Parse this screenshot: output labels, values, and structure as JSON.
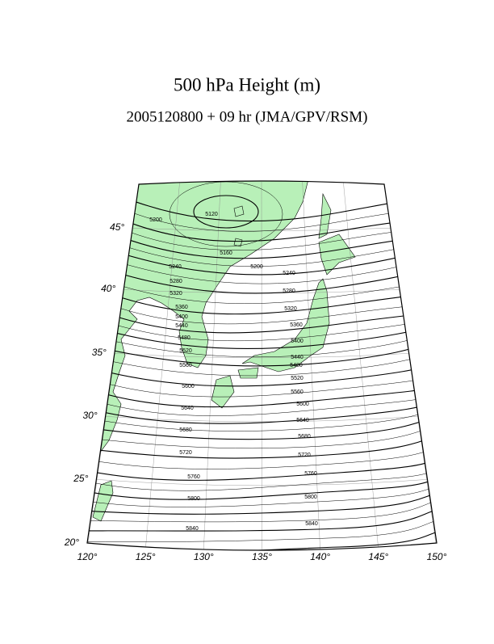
{
  "header": {
    "title": "500 hPa Height (m)",
    "subtitle": "2005120800 + 09 hr (JMA/GPV/RSM)"
  },
  "map": {
    "lat_labels": [
      "20°",
      "25°",
      "30°",
      "35°",
      "40°",
      "45°"
    ],
    "lon_labels": [
      "120°",
      "125°",
      "130°",
      "135°",
      "140°",
      "145°",
      "150°"
    ],
    "contour_labels": [
      5120,
      5200,
      5160,
      5200,
      5240,
      5240,
      5280,
      5280,
      5320,
      5320,
      5360,
      5360,
      5400,
      5400,
      5440,
      5440,
      5480,
      5480,
      5520,
      5520,
      5560,
      5560,
      5600,
      5600,
      5640,
      5640,
      5680,
      5680,
      5720,
      5720,
      5760,
      5760,
      5800,
      5800,
      5840,
      5840
    ]
  }
}
